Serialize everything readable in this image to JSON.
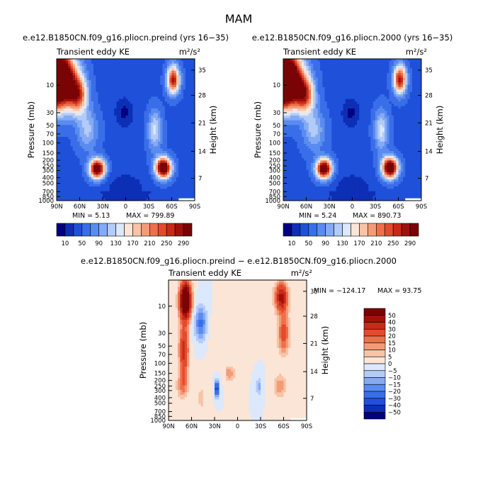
{
  "figure": {
    "title": "MAM",
    "diff_title": "e.e12.B1850CN.f09_g16.pliocn.preind − e.e12.B1850CN.f09_g16.pliocn.2000"
  },
  "chart_data": [
    {
      "type": "heatmap",
      "title": "e.e12.B1850CN.f09_g16.pliocn.preind (yrs 16−35)",
      "subtitle_left": "Transient eddy KE",
      "units": "m²/s²",
      "ylabel": "Pressure (mb)",
      "y2label": "Height (km)",
      "x_ticks": [
        "90N",
        "60N",
        "30N",
        "0",
        "30S",
        "60S",
        "90S"
      ],
      "y_ticks": [
        "10",
        "30",
        "50",
        "70",
        "100",
        "150",
        "200",
        "250",
        "300",
        "400",
        "500",
        "700",
        "850",
        "1000"
      ],
      "y2_ticks": [
        "35",
        "28",
        "21",
        "14",
        "7"
      ],
      "min_text": "MIN =    5.13",
      "max_text": "MAX =  799.89",
      "min": 5.13,
      "max": 799.89,
      "levels": [
        10,
        30,
        50,
        70,
        90,
        110,
        130,
        150,
        170,
        190,
        210,
        230,
        250,
        270,
        290
      ],
      "colorbar_labels": [
        "10",
        "50",
        "90",
        "130",
        "170",
        "210",
        "250",
        "290"
      ],
      "colors": [
        "#000080",
        "#0d2fb5",
        "#1f50d9",
        "#3a6ee8",
        "#5a8bef",
        "#84aaf4",
        "#b3cbf7",
        "#dce8fb",
        "#fbe5d6",
        "#f8c3a6",
        "#f49b76",
        "#ee6f4b",
        "#e24b2c",
        "#c82a18",
        "#a1110b",
        "#7a0405"
      ],
      "fields": {
        "stratosphere_max_lat": "90N",
        "jet_peaks": [
          {
            "lat": 38,
            "pres": 250,
            "value": 290
          },
          {
            "lat": -50,
            "pres": 250,
            "value": 290
          }
        ]
      }
    },
    {
      "type": "heatmap",
      "title": "e.e12.B1850CN.f09_g16.pliocn.2000 (yrs 16−35)",
      "subtitle_left": "Transient eddy KE",
      "units": "m²/s²",
      "ylabel": "Pressure (mb)",
      "y2label": "Height (km)",
      "x_ticks": [
        "90N",
        "60N",
        "30N",
        "0",
        "30S",
        "60S",
        "90S"
      ],
      "y_ticks": [
        "10",
        "30",
        "50",
        "70",
        "100",
        "150",
        "200",
        "250",
        "300",
        "400",
        "500",
        "700",
        "850",
        "1000"
      ],
      "y2_ticks": [
        "35",
        "28",
        "21",
        "14",
        "7"
      ],
      "min_text": "MIN =    5.24",
      "max_text": "MAX =  890.73",
      "min": 5.24,
      "max": 890.73,
      "levels": [
        10,
        30,
        50,
        70,
        90,
        110,
        130,
        150,
        170,
        190,
        210,
        230,
        250,
        270,
        290
      ],
      "colorbar_labels": [
        "10",
        "50",
        "90",
        "130",
        "170",
        "210",
        "250",
        "290"
      ]
    },
    {
      "type": "heatmap",
      "title": "e.e12.B1850CN.f09_g16.pliocn.preind − e.e12.B1850CN.f09_g16.pliocn.2000",
      "subtitle_left": "Transient eddy KE",
      "units": "m²/s²",
      "ylabel": "Pressure (mb)",
      "y2label": "Height (km)",
      "x_ticks": [
        "90N",
        "60N",
        "30N",
        "0",
        "30S",
        "60S",
        "90S"
      ],
      "y_ticks": [
        "10",
        "30",
        "50",
        "70",
        "100",
        "150",
        "200",
        "250",
        "300",
        "400",
        "500",
        "700",
        "850",
        "1000"
      ],
      "y2_ticks": [
        "35",
        "28",
        "21",
        "14",
        "7"
      ],
      "min_text": "MIN = −124.17",
      "max_text": "MAX =  93.75",
      "min": -124.17,
      "max": 93.75,
      "levels": [
        -50,
        -40,
        -30,
        -20,
        -15,
        -10,
        -5,
        0,
        5,
        10,
        15,
        20,
        30,
        40,
        50
      ],
      "colorbar_labels": [
        "50",
        "40",
        "30",
        "20",
        "15",
        "10",
        "5",
        "0",
        "−5",
        "−10",
        "−15",
        "−20",
        "−30",
        "−40",
        "−50"
      ],
      "colors": [
        "#7a0405",
        "#a1110b",
        "#c82a18",
        "#e24b2c",
        "#ee6f4b",
        "#f49b76",
        "#f8c3a6",
        "#fbe5d6",
        "#dce8fb",
        "#b3cbf7",
        "#84aaf4",
        "#5a8bef",
        "#3a6ee8",
        "#1f50d9",
        "#0d2fb5",
        "#000080"
      ]
    }
  ]
}
